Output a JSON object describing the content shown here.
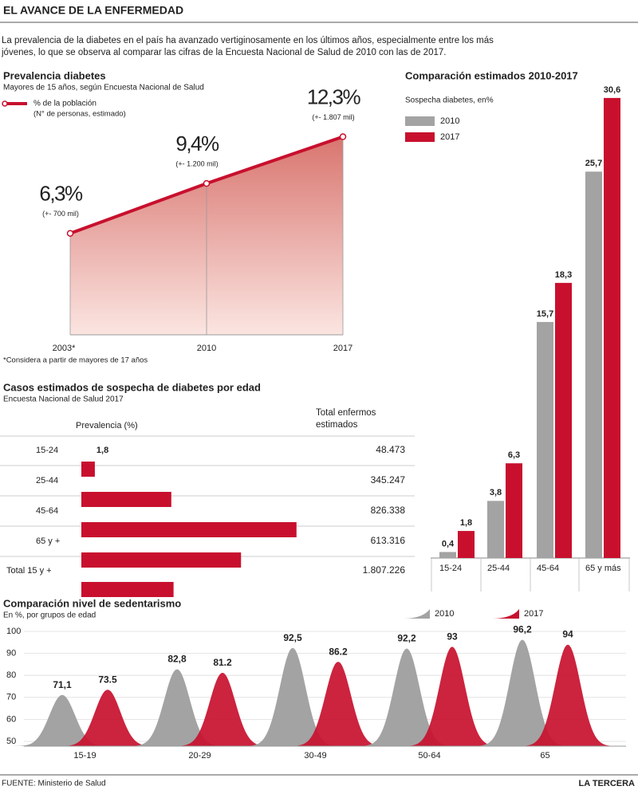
{
  "header": {
    "title": "EL AVANCE DE LA ENFERMEDAD",
    "intro": "La prevalencia de la diabetes en el país ha avanzado vertiginosamente en los últimos años, especialmente entre los más jóvenes, lo que se observa al comparar las cifras de la Encuesta Nacional de Salud de 2010 con las de 2017."
  },
  "footer": {
    "source": "FUENTE: Ministerio de Salud",
    "brand": "LA TERCERA"
  },
  "chart_data": [
    {
      "type": "area",
      "title": "Prevalencia diabetes",
      "subtitle": "Mayores de 15 años, según Encuesta Nacional de Salud",
      "legend_label": "% de la población",
      "legend_note": "(N° de personas, estimado)",
      "categories": [
        "2003*",
        "2010",
        "2017"
      ],
      "values": [
        6.3,
        9.4,
        12.3
      ],
      "value_labels": [
        "6,3%",
        "9,4%",
        "12,3%"
      ],
      "annotations": [
        "(+- 700 mil)",
        "(+- 1.200 mil)",
        "(+- 1.807 mil)"
      ],
      "note": "*Considera a partir de mayores de 17 años",
      "color": "#c8102e"
    },
    {
      "type": "hbar",
      "title": "Casos estimados de sospecha de diabetes por edad",
      "subtitle": "Encuesta Nacional de Salud 2017",
      "column_headers": [
        "Prevalencia (%)",
        "Total enfermos estimados"
      ],
      "categories": [
        "15-24",
        "25-44",
        "45-64",
        "65 y +",
        "Total 15 y +"
      ],
      "values": [
        1.8,
        12,
        28.7,
        21.3,
        12.3
      ],
      "value_labels": [
        "1,8",
        null,
        null,
        null,
        null
      ],
      "totals": [
        "48.473",
        "345.247",
        "826.338",
        "613.316",
        "1.807.226"
      ],
      "color": "#c8102e"
    },
    {
      "type": "grouped-bar",
      "title": "Comparación estimados 2010-2017",
      "subtitle": "Sospecha diabetes, en%",
      "categories": [
        "15-24",
        "25-44",
        "45-64",
        "65 y más"
      ],
      "series": [
        {
          "name": "2010",
          "color": "#a3a3a3",
          "values": [
            0.4,
            3.8,
            15.7,
            25.7
          ],
          "value_labels": [
            "0,4",
            "3,8",
            "15,7",
            "25,7"
          ]
        },
        {
          "name": "2017",
          "color": "#c8102e",
          "values": [
            1.8,
            6.3,
            18.3,
            30.6
          ],
          "value_labels": [
            "1,8",
            "6,3",
            "18,3",
            "30,6"
          ]
        }
      ]
    },
    {
      "type": "peaks",
      "title": "Comparación nivel de sedentarismo",
      "subtitle": "En %, por grupos de edad",
      "categories": [
        "15-19",
        "20-29",
        "30-49",
        "50-64",
        "65"
      ],
      "series": [
        {
          "name": "2010",
          "color": "#a3a3a3",
          "values": [
            71.1,
            82.8,
            92.5,
            92.2,
            96.2
          ],
          "value_labels": [
            "71,1",
            "82,8",
            "92,5",
            "92,2",
            "96,2"
          ]
        },
        {
          "name": "2017",
          "color": "#c8102e",
          "values": [
            73.5,
            81.2,
            86.2,
            93,
            94
          ]
        }
      ],
      "ylim": [
        50,
        100
      ],
      "yticks": [
        50,
        60,
        70,
        80,
        90,
        100
      ],
      "grid": true
    }
  ]
}
